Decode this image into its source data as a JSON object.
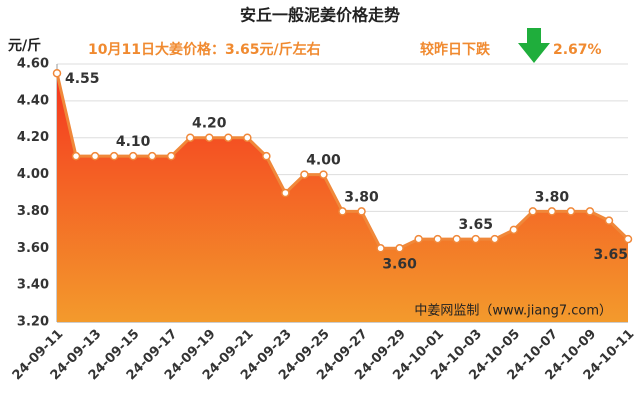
{
  "chart_data": {
    "type": "line",
    "title": "安丘一般泥姜价格走势",
    "y_label": "元/斤",
    "annotations": [
      "10月11日大姜价格：3.65元/斤左右",
      "较昨日下跌",
      "2.67%"
    ],
    "watermark": "中姜网监制（www.jiang7.com）",
    "categories": [
      "24-09-11",
      null,
      "24-09-13",
      null,
      "24-09-15",
      null,
      "24-09-17",
      null,
      "24-09-19",
      null,
      "24-09-21",
      null,
      "24-09-23",
      null,
      "24-09-25",
      null,
      "24-09-27",
      null,
      "24-09-29",
      null,
      "24-10-01",
      null,
      "24-10-03",
      null,
      "24-10-05",
      null,
      "24-10-07",
      null,
      "24-10-09",
      null,
      "24-10-11"
    ],
    "series": [
      {
        "color": "#f0883a",
        "values": [
          4.55,
          4.1,
          4.1,
          4.1,
          4.1,
          4.1,
          4.1,
          4.2,
          4.2,
          4.2,
          4.2,
          4.1,
          3.9,
          4.0,
          4.0,
          3.8,
          3.8,
          3.6,
          3.6,
          3.65,
          3.65,
          3.65,
          3.65,
          3.65,
          3.7,
          3.8,
          3.8,
          3.8,
          3.8,
          3.75,
          3.65
        ],
        "value_labels": [
          "4.55",
          null,
          null,
          null,
          "4.10",
          null,
          null,
          null,
          "4.20",
          null,
          null,
          null,
          null,
          null,
          "4.00",
          null,
          "3.80",
          null,
          "3.60",
          null,
          null,
          null,
          "3.65",
          null,
          null,
          null,
          "3.80",
          null,
          null,
          null,
          "3.65"
        ]
      }
    ],
    "ylim": [
      3.2,
      4.6
    ],
    "yticks": [
      {
        "value": 3.2,
        "label": "3.20"
      },
      {
        "value": 3.4,
        "label": "3.40"
      },
      {
        "value": 3.6,
        "label": "3.60"
      },
      {
        "value": 3.8,
        "label": "3.80"
      },
      {
        "value": 4.0,
        "label": "4.00"
      },
      {
        "value": 4.2,
        "label": "4.20"
      },
      {
        "value": 4.4,
        "label": "4.40"
      },
      {
        "value": 4.6,
        "label": "4.60"
      }
    ],
    "grid": true
  }
}
